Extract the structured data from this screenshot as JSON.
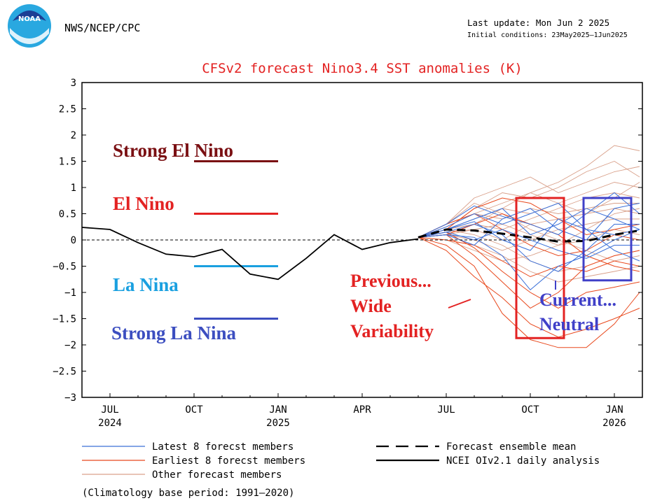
{
  "header": {
    "agency": "NWS/NCEP/CPC",
    "logo_text": "NOAA",
    "last_update": "Last update: Mon Jun 2 2025",
    "initial_conditions": "Initial conditions: 23May2025–1Jun2025"
  },
  "footer": {
    "climatology": "(Climatology base period: 1991–2020)"
  },
  "colors": {
    "latest": "#3a6fd8",
    "earliest": "#e8481c",
    "other": "#d9a08a",
    "strong_el_nino": "#7a0f12",
    "el_nino": "#e32222",
    "la_nina": "#1aa0e0",
    "strong_la_nina": "#3c4ec0",
    "annot_red": "#e32222",
    "annot_blue": "#4040c8",
    "title": "#e32222"
  },
  "chart_data": {
    "type": "line",
    "title": "CFSv2 forecast Nino3.4 SST anomalies (K)",
    "ylim": [
      -3,
      3
    ],
    "yticks": [
      "3",
      "2.5",
      "2",
      "1.5",
      "1",
      "0.5",
      "0",
      "−0.5",
      "−1",
      "−1.5",
      "−2",
      "−2.5",
      "−3"
    ],
    "ytick_values": [
      3,
      2.5,
      2,
      1.5,
      1,
      0.5,
      0,
      -0.5,
      -1,
      -1.5,
      -2,
      -2.5,
      -3
    ],
    "xlim": [
      -1,
      19
    ],
    "xticks": [
      {
        "x": 0,
        "label": "JUL",
        "year": "2024"
      },
      {
        "x": 3,
        "label": "OCT",
        "year": ""
      },
      {
        "x": 6,
        "label": "JAN",
        "year": "2025"
      },
      {
        "x": 9,
        "label": "APR",
        "year": ""
      },
      {
        "x": 12,
        "label": "JUL",
        "year": ""
      },
      {
        "x": 15,
        "label": "OCT",
        "year": ""
      },
      {
        "x": 18,
        "label": "JAN",
        "year": "2026"
      }
    ],
    "zero_line": true,
    "observed": {
      "name": "NCEI OIv2.1 daily analysis",
      "x": [
        -1,
        0,
        1,
        2,
        3,
        4,
        5,
        6,
        7,
        8,
        9,
        10,
        11
      ],
      "y": [
        0.24,
        0.2,
        -0.05,
        -0.27,
        -0.32,
        -0.18,
        -0.65,
        -0.75,
        -0.35,
        0.1,
        -0.18,
        -0.05,
        0.02
      ]
    },
    "ensemble_mean": {
      "name": "Forecast ensemble mean",
      "x": [
        11,
        12,
        13,
        14,
        15,
        16,
        17,
        18,
        18.9
      ],
      "y": [
        0.05,
        0.2,
        0.18,
        0.12,
        0.05,
        -0.03,
        -0.02,
        0.1,
        0.18
      ]
    },
    "latest_members": [
      {
        "x": [
          11,
          12,
          13,
          14,
          15,
          16,
          17,
          18,
          18.9
        ],
        "y": [
          0.05,
          0.3,
          0.65,
          0.45,
          0.3,
          0.1,
          0.5,
          0.9,
          0.5
        ]
      },
      {
        "x": [
          11,
          12,
          13,
          14,
          15,
          16,
          17,
          18,
          18.9
        ],
        "y": [
          0.05,
          0.2,
          0.4,
          0.6,
          0.1,
          0.3,
          0.6,
          0.4,
          0.2
        ]
      },
      {
        "x": [
          11,
          12,
          13,
          14,
          15,
          16,
          17,
          18,
          18.9
        ],
        "y": [
          0.05,
          0.1,
          0.05,
          -0.3,
          -0.95,
          -0.5,
          -0.3,
          0.0,
          0.2
        ]
      },
      {
        "x": [
          11,
          12,
          13,
          14,
          15,
          16,
          17,
          18,
          18.9
        ],
        "y": [
          0.05,
          0.15,
          0.3,
          0.1,
          -0.4,
          -0.6,
          -0.2,
          0.3,
          0.3
        ]
      },
      {
        "x": [
          11,
          12,
          13,
          14,
          15,
          16,
          17,
          18,
          18.9
        ],
        "y": [
          0.05,
          0.25,
          0.5,
          0.3,
          0.5,
          0.7,
          0.2,
          0.1,
          0.2
        ]
      },
      {
        "x": [
          11,
          12,
          13,
          14,
          15,
          16,
          17,
          18,
          18.9
        ],
        "y": [
          0.05,
          0.15,
          0.0,
          0.2,
          0.0,
          -0.2,
          -0.35,
          -0.1,
          -0.1
        ]
      },
      {
        "x": [
          11,
          12,
          13,
          14,
          15,
          16,
          17,
          18,
          18.9
        ],
        "y": [
          0.05,
          0.2,
          0.35,
          0.0,
          -0.2,
          0.4,
          0.2,
          -0.2,
          -0.4
        ]
      },
      {
        "x": [
          11,
          12,
          13,
          14,
          15,
          16,
          17,
          18,
          18.9
        ],
        "y": [
          0.05,
          0.1,
          -0.1,
          0.4,
          0.6,
          0.2,
          0.0,
          0.6,
          0.7
        ]
      }
    ],
    "earliest_members": [
      {
        "x": [
          11,
          12,
          13,
          14,
          15,
          16,
          17,
          18,
          18.9
        ],
        "y": [
          0.05,
          -0.2,
          -0.7,
          -1.1,
          -1.6,
          -1.85,
          -1.7,
          -1.5,
          -1.3
        ]
      },
      {
        "x": [
          11,
          12,
          13,
          14,
          15,
          16,
          17,
          18,
          18.9
        ],
        "y": [
          0.05,
          -0.1,
          -0.5,
          -1.4,
          -1.9,
          -2.05,
          -2.05,
          -1.6,
          -1.0
        ]
      },
      {
        "x": [
          11,
          12,
          13,
          14,
          15,
          16,
          17,
          18,
          18.9
        ],
        "y": [
          0.05,
          0.2,
          0.6,
          0.8,
          0.7,
          0.4,
          0.1,
          0.2,
          0.3
        ]
      },
      {
        "x": [
          11,
          12,
          13,
          14,
          15,
          16,
          17,
          18,
          18.9
        ],
        "y": [
          0.05,
          0.1,
          -0.3,
          -0.8,
          -1.3,
          -1.0,
          -0.5,
          -0.3,
          -0.2
        ]
      },
      {
        "x": [
          11,
          12,
          13,
          14,
          15,
          16,
          17,
          18,
          18.9
        ],
        "y": [
          0.05,
          0.0,
          -0.1,
          -0.4,
          -0.7,
          -0.5,
          -0.6,
          -0.4,
          -0.5
        ]
      },
      {
        "x": [
          11,
          12,
          13,
          14,
          15,
          16,
          17,
          18,
          18.9
        ],
        "y": [
          0.05,
          0.3,
          0.5,
          0.2,
          -0.1,
          -0.3,
          -0.2,
          0.1,
          0.0
        ]
      },
      {
        "x": [
          11,
          12,
          13,
          14,
          15,
          16,
          17,
          18,
          18.9
        ],
        "y": [
          0.05,
          0.15,
          -0.15,
          -0.6,
          -1.0,
          -1.3,
          -1.0,
          -0.9,
          -0.8
        ]
      },
      {
        "x": [
          11,
          12,
          13,
          14,
          15,
          16,
          17,
          18,
          18.9
        ],
        "y": [
          0.05,
          0.1,
          0.3,
          0.5,
          0.3,
          0.1,
          -0.3,
          -0.5,
          -0.6
        ]
      }
    ],
    "other_members": [
      {
        "x": [
          11,
          12,
          13,
          14,
          15,
          16,
          17,
          18,
          18.9
        ],
        "y": [
          0.05,
          0.3,
          0.5,
          0.7,
          0.9,
          1.1,
          1.4,
          1.8,
          1.7
        ]
      },
      {
        "x": [
          11,
          12,
          13,
          14,
          15,
          16,
          17,
          18,
          18.9
        ],
        "y": [
          0.05,
          0.2,
          0.6,
          0.9,
          0.8,
          1.0,
          1.3,
          1.5,
          1.2
        ]
      },
      {
        "x": [
          11,
          12,
          13,
          14,
          15,
          16,
          17,
          18,
          18.9
        ],
        "y": [
          0.05,
          0.3,
          0.8,
          1.0,
          1.2,
          0.9,
          1.1,
          1.3,
          1.4
        ]
      },
      {
        "x": [
          11,
          12,
          13,
          14,
          15,
          16,
          17,
          18,
          18.9
        ],
        "y": [
          0.05,
          0.2,
          0.4,
          0.6,
          0.5,
          0.7,
          0.9,
          1.1,
          1.0
        ]
      },
      {
        "x": [
          11,
          12,
          13,
          14,
          15,
          16,
          17,
          18,
          18.9
        ],
        "y": [
          0.05,
          0.1,
          0.3,
          0.2,
          0.4,
          0.6,
          0.8,
          0.9,
          0.8
        ]
      },
      {
        "x": [
          11,
          12,
          13,
          14,
          15,
          16,
          17,
          18,
          18.9
        ],
        "y": [
          0.05,
          0.25,
          0.5,
          0.4,
          0.6,
          0.5,
          0.6,
          0.7,
          0.7
        ]
      },
      {
        "x": [
          11,
          12,
          13,
          14,
          15,
          16,
          17,
          18,
          18.9
        ],
        "y": [
          0.05,
          0.15,
          0.2,
          0.0,
          0.3,
          0.4,
          0.5,
          0.6,
          0.5
        ]
      },
      {
        "x": [
          11,
          12,
          13,
          14,
          15,
          16,
          17,
          18,
          18.9
        ],
        "y": [
          0.05,
          0.1,
          0.0,
          -0.2,
          0.0,
          0.2,
          0.3,
          0.4,
          0.4
        ]
      },
      {
        "x": [
          11,
          12,
          13,
          14,
          15,
          16,
          17,
          18,
          18.9
        ],
        "y": [
          0.05,
          0.0,
          -0.2,
          -0.4,
          -0.3,
          -0.1,
          0.0,
          0.2,
          0.1
        ]
      },
      {
        "x": [
          11,
          12,
          13,
          14,
          15,
          16,
          17,
          18,
          18.9
        ],
        "y": [
          0.05,
          0.2,
          0.1,
          -0.1,
          -0.4,
          -0.6,
          -0.5,
          -0.3,
          -0.2
        ]
      },
      {
        "x": [
          11,
          12,
          13,
          14,
          15,
          16,
          17,
          18,
          18.9
        ],
        "y": [
          0.05,
          0.3,
          0.7,
          0.5,
          0.2,
          0.0,
          -0.2,
          -0.4,
          -0.3
        ]
      },
      {
        "x": [
          11,
          12,
          13,
          14,
          15,
          16,
          17,
          18,
          18.9
        ],
        "y": [
          0.05,
          0.1,
          -0.1,
          -0.3,
          -0.6,
          -0.8,
          -0.7,
          -0.6,
          -0.5
        ]
      },
      {
        "x": [
          11,
          12,
          13,
          14,
          15,
          16,
          17,
          18,
          18.9
        ],
        "y": [
          0.05,
          0.2,
          0.3,
          0.6,
          0.9,
          0.7,
          0.5,
          0.8,
          1.1
        ]
      },
      {
        "x": [
          11,
          12,
          13,
          14,
          15,
          16,
          17,
          18,
          18.9
        ],
        "y": [
          0.05,
          0.1,
          0.2,
          0.3,
          0.1,
          -0.1,
          0.2,
          0.5,
          0.6
        ]
      }
    ],
    "thresholds": [
      {
        "key": "strong_el_nino",
        "label": "Strong El Nino",
        "y": 1.5,
        "x": [
          3,
          6
        ]
      },
      {
        "key": "el_nino",
        "label": "El Nino",
        "y": 0.5,
        "x": [
          3,
          6
        ]
      },
      {
        "key": "la_nina",
        "label": "La Nina",
        "y": -0.5,
        "x": [
          3,
          6
        ]
      },
      {
        "key": "strong_la_nina",
        "label": "Strong La Nina",
        "y": -1.5,
        "x": [
          3,
          6
        ]
      }
    ],
    "annotation_boxes": [
      {
        "key": "previous",
        "x": [
          14.5,
          16.2
        ],
        "y": [
          -1.87,
          0.8
        ],
        "lines": [
          "Previous...",
          "Wide",
          "Variability"
        ]
      },
      {
        "key": "current",
        "x": [
          16.9,
          18.6
        ],
        "y": [
          -0.77,
          0.8
        ],
        "lines": [
          "Current...",
          "Neutral"
        ]
      }
    ],
    "legend": {
      "latest": "Latest 8 forecst members",
      "earliest": "Earliest 8 forecst members",
      "other": "Other forecast members",
      "mean": "Forecast ensemble mean",
      "observed": "NCEI OIv2.1 daily analysis"
    }
  }
}
